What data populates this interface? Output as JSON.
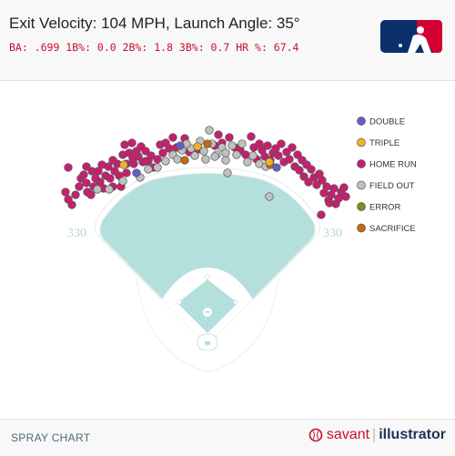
{
  "header": {
    "title": "Exit Velocity: 104 MPH, Launch Angle: 35°",
    "stats": "BA: .699 1B%: 0.0 2B%: 1.8 3B%: 0.7 HR %: 67.4"
  },
  "footer": {
    "left_label": "SPRAY CHART",
    "brand_savant": "savant",
    "brand_separator": "|",
    "brand_illustrator": "illustrator"
  },
  "field": {
    "left_field_distance": "330",
    "right_field_distance": "330",
    "field_color": "#b3e0dd"
  },
  "chart_data": {
    "type": "scatter",
    "title": "Exit Velocity: 104 MPH, Launch Angle: 35°",
    "legend_placement": "right",
    "legend": [
      {
        "name": "DOUBLE",
        "color": "#6a5acd"
      },
      {
        "name": "TRIPLE",
        "color": "#f0b323"
      },
      {
        "name": "HOME RUN",
        "color": "#c71f6f"
      },
      {
        "name": "FIELD OUT",
        "color": "#c0c0c0"
      },
      {
        "name": "ERROR",
        "color": "#7a8d1f"
      },
      {
        "name": "SACRIFICE",
        "color": "#c46a12"
      }
    ],
    "series": [
      {
        "name": "HOME RUN",
        "points": [
          [
            75,
            184
          ],
          [
            72,
            211
          ],
          [
            75,
            219
          ],
          [
            79,
            225
          ],
          [
            83,
            214
          ],
          [
            87,
            205
          ],
          [
            89,
            196
          ],
          [
            92,
            192
          ],
          [
            95,
            201
          ],
          [
            96,
            211
          ],
          [
            100,
            214
          ],
          [
            103,
            205
          ],
          [
            105,
            196
          ],
          [
            108,
            188
          ],
          [
            110,
            200
          ],
          [
            114,
            207
          ],
          [
            116,
            193
          ],
          [
            119,
            183
          ],
          [
            121,
            196
          ],
          [
            124,
            205
          ],
          [
            126,
            188
          ],
          [
            129,
            180
          ],
          [
            131,
            193
          ],
          [
            133,
            205
          ],
          [
            135,
            170
          ],
          [
            137,
            159
          ],
          [
            139,
            180
          ],
          [
            142,
            168
          ],
          [
            145,
            157
          ],
          [
            147,
            180
          ],
          [
            150,
            166
          ],
          [
            152,
            172
          ],
          [
            155,
            161
          ],
          [
            157,
            178
          ],
          [
            160,
            166
          ],
          [
            163,
            177
          ],
          [
            166,
            171
          ],
          [
            169,
            184
          ],
          [
            173,
            175
          ],
          [
            176,
            159
          ],
          [
            179,
            168
          ],
          [
            182,
            157
          ],
          [
            186,
            163
          ],
          [
            190,
            151
          ],
          [
            194,
            162
          ],
          [
            203,
            152
          ],
          [
            208,
            167
          ],
          [
            218,
            164
          ],
          [
            236,
            160
          ],
          [
            240,
            148
          ],
          [
            244,
            157
          ],
          [
            252,
            151
          ],
          [
            258,
            162
          ],
          [
            264,
            165
          ],
          [
            270,
            170
          ],
          [
            276,
            150
          ],
          [
            279,
            162
          ],
          [
            282,
            175
          ],
          [
            285,
            158
          ],
          [
            288,
            165
          ],
          [
            291,
            172
          ],
          [
            294,
            160
          ],
          [
            297,
            176
          ],
          [
            300,
            168
          ],
          [
            303,
            163
          ],
          [
            306,
            171
          ],
          [
            309,
            158
          ],
          [
            312,
            178
          ],
          [
            315,
            167
          ],
          [
            318,
            175
          ],
          [
            321,
            162
          ],
          [
            324,
            183
          ],
          [
            327,
            170
          ],
          [
            329,
            187
          ],
          [
            332,
            176
          ],
          [
            334,
            194
          ],
          [
            337,
            181
          ],
          [
            339,
            200
          ],
          [
            342,
            186
          ],
          [
            345,
            195
          ],
          [
            348,
            203
          ],
          [
            351,
            191
          ],
          [
            354,
            198
          ],
          [
            356,
            212
          ],
          [
            359,
            205
          ],
          [
            361,
            220
          ],
          [
            364,
            214
          ],
          [
            367,
            207
          ],
          [
            369,
            224
          ],
          [
            372,
            218
          ],
          [
            375,
            211
          ],
          [
            378,
            206
          ],
          [
            380,
            216
          ],
          [
            353,
            236
          ],
          [
            362,
            223
          ],
          [
            95,
            183
          ],
          [
            101,
            188
          ],
          [
            112,
            181
          ],
          [
            124,
            176
          ],
          [
            139,
            190
          ],
          [
            146,
            174
          ],
          [
            160,
            177
          ]
        ]
      },
      {
        "name": "FIELD OUT",
        "points": [
          [
            107,
            208
          ],
          [
            120,
            208
          ],
          [
            135,
            199
          ],
          [
            154,
            195
          ],
          [
            163,
            186
          ],
          [
            173,
            184
          ],
          [
            182,
            177
          ],
          [
            190,
            170
          ],
          [
            195,
            175
          ],
          [
            200,
            165
          ],
          [
            210,
            163
          ],
          [
            214,
            171
          ],
          [
            220,
            155
          ],
          [
            224,
            166
          ],
          [
            230,
            143
          ],
          [
            233,
            158
          ],
          [
            238,
            170
          ],
          [
            244,
            162
          ],
          [
            248,
            176
          ],
          [
            250,
            190
          ],
          [
            255,
            160
          ],
          [
            260,
            170
          ],
          [
            266,
            158
          ],
          [
            272,
            178
          ],
          [
            278,
            171
          ],
          [
            285,
            180
          ],
          [
            292,
            183
          ],
          [
            296,
            216
          ],
          [
            248,
            168
          ],
          [
            236,
            172
          ],
          [
            205,
            158
          ],
          [
            226,
            175
          ]
        ]
      },
      {
        "name": "DOUBLE",
        "points": [
          [
            150,
            190
          ],
          [
            198,
            160
          ],
          [
            304,
            184
          ]
        ]
      },
      {
        "name": "TRIPLE",
        "points": [
          [
            136,
            181
          ],
          [
            217,
            161
          ],
          [
            296,
            178
          ]
        ]
      },
      {
        "name": "SACRIFICE",
        "points": [
          [
            203,
            176
          ],
          [
            228,
            158
          ],
          [
            297,
            181
          ]
        ]
      },
      {
        "name": "ERROR",
        "points": []
      }
    ]
  }
}
